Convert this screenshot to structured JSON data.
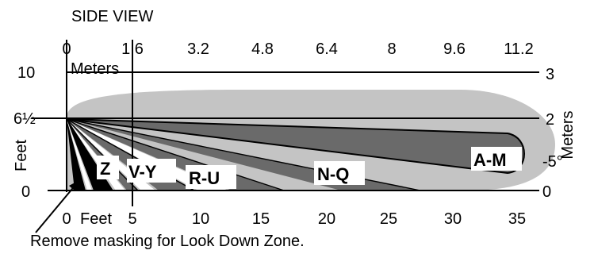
{
  "title": "SIDE VIEW",
  "colors": {
    "coverage": "#c4c4c4",
    "zone_dark": "#6a6a6a",
    "zone_black": "#000000",
    "zone_white": "#ffffff",
    "line": "#000000"
  },
  "top_axis": {
    "unit_label": "Meters",
    "ticks": [
      "0",
      "1.6",
      "3.2",
      "4.8",
      "6.4",
      "8",
      "9.6",
      "11.2"
    ]
  },
  "bottom_axis": {
    "unit_label": "Feet",
    "ticks": [
      "0",
      "5",
      "10",
      "15",
      "20",
      "25",
      "30",
      "35"
    ]
  },
  "left_axis": {
    "unit_label": "Feet",
    "ticks": [
      "10",
      "6½",
      "0"
    ]
  },
  "right_axis": {
    "unit_label": "Meters",
    "ticks": [
      "3",
      "2",
      "0"
    ]
  },
  "angle_label": "-5°",
  "zones": [
    "A-M",
    "N-Q",
    "R-U",
    "V-Y",
    "Z"
  ],
  "note": "Remove masking for Look Down Zone."
}
